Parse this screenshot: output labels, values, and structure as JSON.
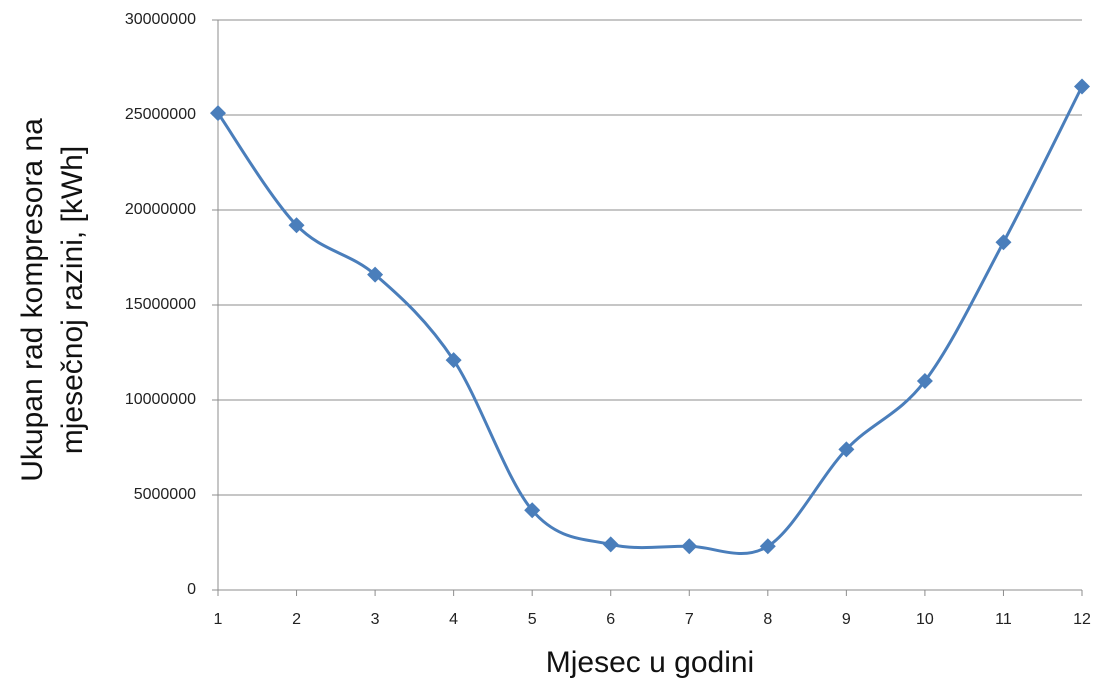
{
  "chart_data": {
    "type": "line",
    "xlabel": "Mjesec u godini",
    "ylabel": [
      "Ukupan rad kompresora na",
      "mjesečnoj razini, [kWh]"
    ],
    "x": [
      1,
      2,
      3,
      4,
      5,
      6,
      7,
      8,
      9,
      10,
      11,
      12
    ],
    "values": [
      25100000,
      19200000,
      16600000,
      12100000,
      4200000,
      2400000,
      2300000,
      2300000,
      7400000,
      11000000,
      18300000,
      26500000
    ],
    "color": "#4a7ebb",
    "xlim": [
      1,
      12
    ],
    "xticks": [
      1,
      2,
      3,
      4,
      5,
      6,
      7,
      8,
      9,
      10,
      11,
      12
    ],
    "ylim": [
      0,
      30000000
    ],
    "yticks": [
      0,
      5000000,
      10000000,
      15000000,
      20000000,
      25000000,
      30000000
    ],
    "grid": true,
    "smooth": true
  }
}
